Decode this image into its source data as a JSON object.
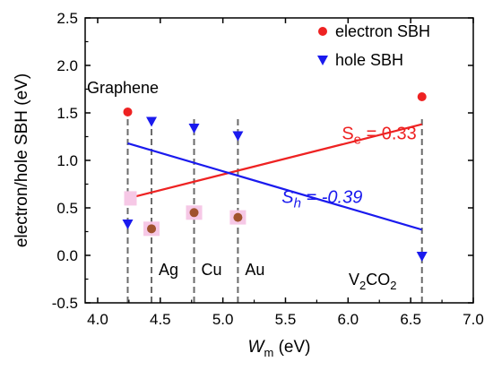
{
  "chart_data": {
    "type": "scatter",
    "xlabel_main": "W",
    "xlabel_sub": "m",
    "xlabel_unit": " (eV)",
    "ylabel": "electron/hole SBH (eV)",
    "xlim": [
      3.9,
      7.0
    ],
    "ylim": [
      -0.5,
      2.5
    ],
    "x_ticks": [
      "4.0",
      "4.5",
      "5.0",
      "5.5",
      "6.0",
      "6.5",
      "7.0"
    ],
    "y_ticks": [
      "-0.5",
      "0.0",
      "0.5",
      "1.0",
      "1.5",
      "2.0",
      "2.5"
    ],
    "legend": {
      "position": "top-right",
      "entries": [
        "electron SBH",
        "hole SBH"
      ]
    },
    "materials": [
      {
        "name": "Graphene",
        "wm": 4.24
      },
      {
        "name": "Ag",
        "wm": 4.43
      },
      {
        "name": "Cu",
        "wm": 4.77
      },
      {
        "name": "Au",
        "wm": 5.12
      },
      {
        "name": "V",
        "name_sub": "2",
        "name_mid": "CO",
        "name_sub2": "2",
        "wm": 6.59
      }
    ],
    "series": [
      {
        "name": "electron SBH",
        "color": "#ee2222",
        "marker": "circle",
        "points": [
          [
            4.24,
            1.51
          ],
          [
            6.59,
            1.67
          ]
        ]
      },
      {
        "name": "electron SBH (highlighted)",
        "color": "#a0522d",
        "marker": "circle",
        "points": [
          [
            4.43,
            0.28
          ],
          [
            4.77,
            0.45
          ],
          [
            5.12,
            0.4
          ]
        ]
      },
      {
        "name": "hole SBH",
        "color": "#1a1aee",
        "marker": "triangle-down",
        "points": [
          [
            4.24,
            0.33
          ],
          [
            4.43,
            1.41
          ],
          [
            4.77,
            1.34
          ],
          [
            5.12,
            1.26
          ],
          [
            6.59,
            -0.01
          ]
        ]
      }
    ],
    "fit_lines": [
      {
        "label_base": "S",
        "label_sub": "e",
        "label_rest": " = 0.33",
        "color": "#ee2222",
        "from": [
          4.24,
          0.6
        ],
        "to": [
          6.59,
          1.38
        ],
        "label_at": [
          5.95,
          1.28
        ]
      },
      {
        "label_base": "S",
        "label_sub": "h",
        "label_rest": " = -0.39",
        "color": "#1a1aee",
        "from": [
          4.24,
          1.18
        ],
        "to": [
          6.59,
          0.27
        ],
        "label_at": [
          5.47,
          0.61
        ]
      }
    ]
  }
}
